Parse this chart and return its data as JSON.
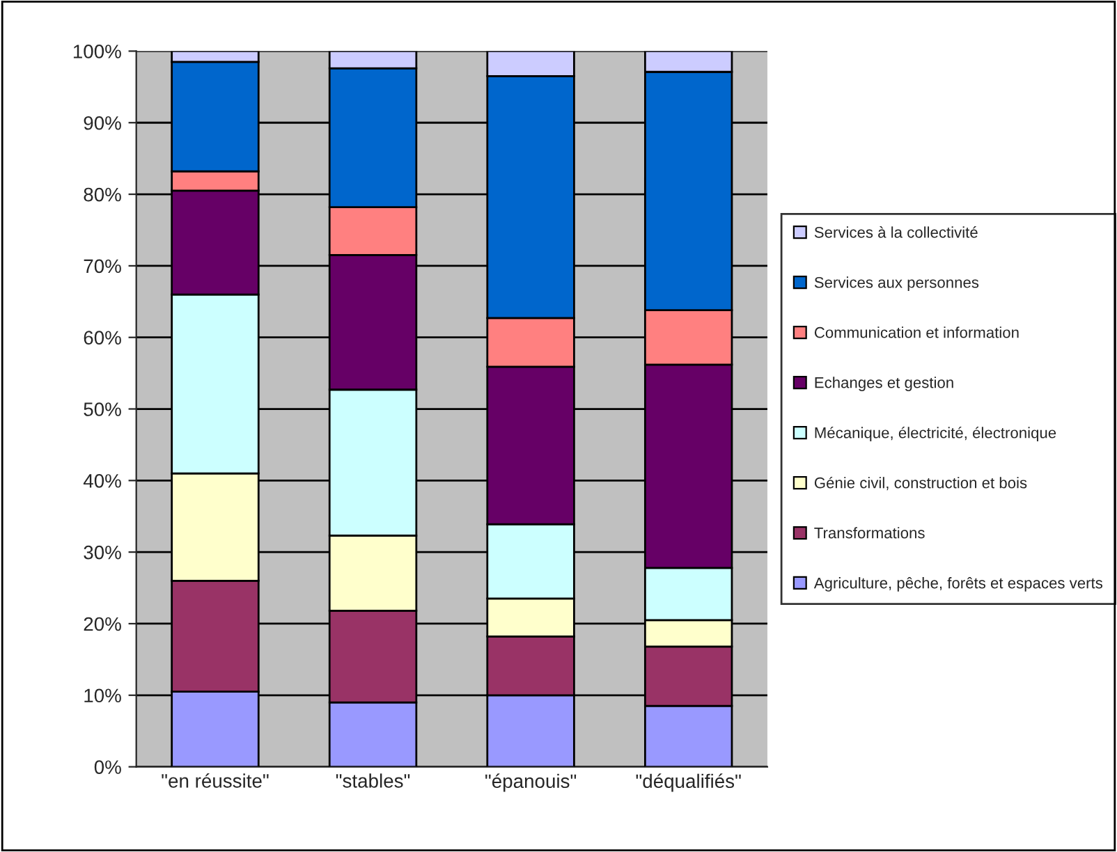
{
  "chart_data": {
    "type": "bar",
    "stacked": true,
    "categories": [
      "\"en réussite\"",
      "\"stables\"",
      "\"épanouis\"",
      "\"déqualifiés\""
    ],
    "series": [
      {
        "name": "Agriculture, pêche, forêts et espaces verts",
        "color": "#9999ff",
        "values": [
          10.5,
          9,
          10,
          8.5
        ]
      },
      {
        "name": "Transformations",
        "color": "#993366",
        "values": [
          15.5,
          12.8,
          8.2,
          8.3
        ]
      },
      {
        "name": "Génie civil, construction et bois",
        "color": "#ffffcc",
        "values": [
          15,
          10.5,
          5.3,
          3.7
        ]
      },
      {
        "name": "Mécanique, électricité, électronique",
        "color": "#ccffff",
        "values": [
          25,
          20.4,
          10.4,
          7.3
        ]
      },
      {
        "name": "Echanges et gestion",
        "color": "#660066",
        "values": [
          14.5,
          18.8,
          22,
          28.4
        ]
      },
      {
        "name": "Communication et information",
        "color": "#ff8080",
        "values": [
          2.7,
          6.7,
          6.8,
          7.6
        ]
      },
      {
        "name": "Services aux personnes",
        "color": "#0066cc",
        "values": [
          15.3,
          19.4,
          33.8,
          33.3
        ]
      },
      {
        "name": "Services à la collectivité",
        "color": "#ccccff",
        "values": [
          1.5,
          2.4,
          3.5,
          2.9
        ]
      }
    ],
    "ylim": [
      0,
      100
    ],
    "yticks": [
      {
        "value": 0,
        "label": "0%"
      },
      {
        "value": 10,
        "label": "10%"
      },
      {
        "value": 20,
        "label": "20%"
      },
      {
        "value": 30,
        "label": "30%"
      },
      {
        "value": 40,
        "label": "40%"
      },
      {
        "value": 50,
        "label": "50%"
      },
      {
        "value": 60,
        "label": "60%"
      },
      {
        "value": 70,
        "label": "70%"
      },
      {
        "value": 80,
        "label": "80%"
      },
      {
        "value": 90,
        "label": "90%"
      },
      {
        "value": 100,
        "label": "100%"
      }
    ],
    "grid": "y",
    "legend": "right"
  }
}
